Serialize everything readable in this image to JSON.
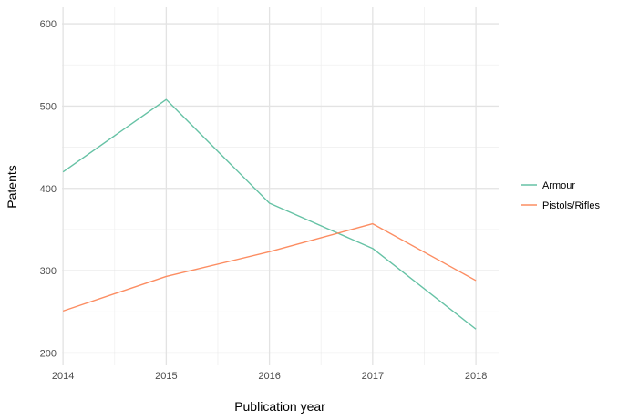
{
  "chart_data": {
    "type": "line",
    "xlabel": "Publication year",
    "ylabel": "Patents",
    "x": [
      2014,
      2015,
      2016,
      2017,
      2018
    ],
    "x_tick_labels": [
      "2014",
      "2015",
      "2016",
      "2017",
      "2018"
    ],
    "xlim": [
      2013.99,
      2018.22
    ],
    "y_ticks": [
      200,
      300,
      400,
      500,
      600
    ],
    "y_tick_labels": [
      "200",
      "300",
      "400",
      "500",
      "600"
    ],
    "ylim": [
      185,
      620
    ],
    "grid": true,
    "legend_position": "right",
    "series": [
      {
        "name": "Armour",
        "color": "#66c2a5",
        "values": [
          420,
          508,
          382,
          327,
          229
        ]
      },
      {
        "name": "Pistols/Rifles",
        "color": "#fc8d62",
        "values": [
          251,
          293,
          323,
          357,
          288
        ]
      }
    ]
  }
}
